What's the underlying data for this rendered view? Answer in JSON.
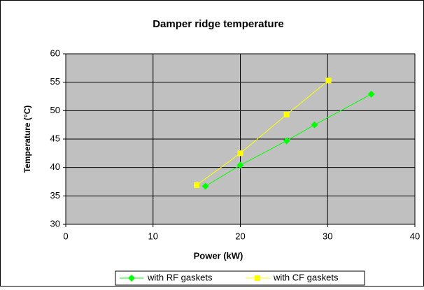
{
  "chart_data": {
    "type": "line",
    "title": "Damper ridge temperature",
    "x_label": "Power (kW)",
    "y_label": "Temperature (°C)",
    "xlim": [
      0,
      40
    ],
    "xticks": [
      0,
      10,
      20,
      30,
      40
    ],
    "ylim": [
      30,
      60
    ],
    "yticks": [
      30,
      35,
      40,
      45,
      50,
      55,
      60
    ],
    "grid": true,
    "legend": "bottom",
    "series": [
      {
        "name": "with RF gaskets",
        "color": "#00ff00",
        "marker": "diamond",
        "x": [
          16,
          20,
          25.3,
          28.5,
          35
        ],
        "values": [
          36.7,
          40.4,
          44.7,
          47.5,
          52.9
        ]
      },
      {
        "name": "with CF gaskets",
        "color": "#ffff00",
        "marker": "square",
        "x": [
          15,
          20,
          25.3,
          30.1,
          35.0
        ],
        "values": [
          36.9,
          42.5,
          49.3,
          55.3,
          null
        ]
      }
    ]
  }
}
